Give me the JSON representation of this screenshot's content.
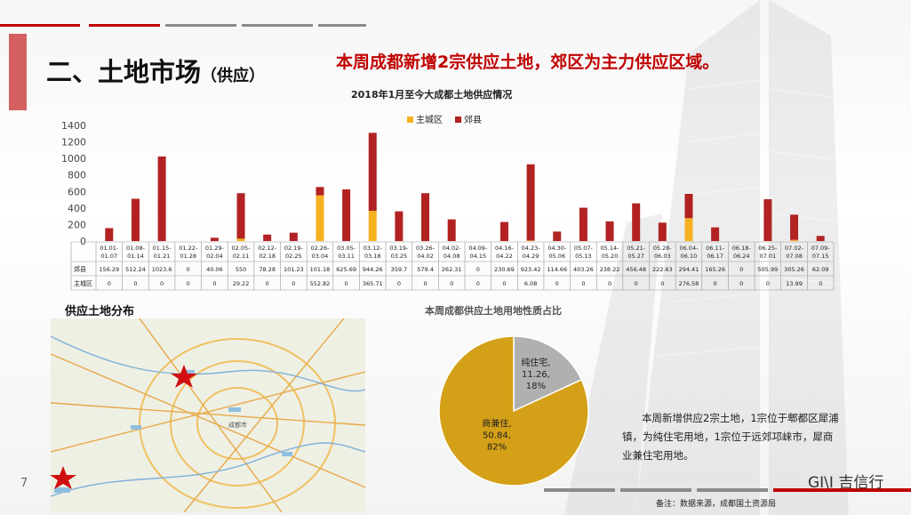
{
  "slide": {
    "title": "二、土地市场",
    "title_paren": "（供应）",
    "headline": "本周成都新增2宗供应土地，郊区为主力供应区域。",
    "page_number": "7",
    "logo_text": "GI\\I 吉信行",
    "note": "备注：数据来源，成都国土资源局"
  },
  "bar_chart": {
    "title": "2018年1月至今大成都土地供应情况",
    "legend": [
      "主城区",
      "郊县"
    ],
    "table_row_labels": [
      "郊县",
      "主城区"
    ]
  },
  "map_section": {
    "label": "供应土地分布",
    "city_label": "成都市"
  },
  "pie": {
    "title": "本周成都供应土地用地性质占比",
    "slices": [
      {
        "label": "纯住宅,",
        "value": "11.26,",
        "pct": "18%"
      },
      {
        "label": "商兼住,",
        "value": "50.84,",
        "pct": "82%"
      }
    ]
  },
  "paragraph": "本周新增供应2宗土地，1宗位于郫都区犀浦镇，为纯住宅用地，1宗位于远郊邛崃市，犀商业兼住宅用地。",
  "colors": {
    "accent_red": "#c00000",
    "bar_suburb": "#b22222",
    "bar_main": "#f5b120",
    "pie_main": "#d4a017",
    "pie_minor": "#b0b0b0"
  },
  "chart_data": [
    {
      "type": "bar",
      "stacked": true,
      "title": "2018年1月至今大成都土地供应情况",
      "categories": [
        "01.01-01.07",
        "01.08-01.14",
        "01.15-01.21",
        "01.22-01.28",
        "01.29-02.04",
        "02.05-02.11",
        "02.12-02.18",
        "02.19-02.25",
        "02.26-03.04",
        "03.05-03.11",
        "03.12-03.18",
        "03.19-03.25",
        "03.26-04.02",
        "04.02-04.08",
        "04.09-04.15",
        "04.16-04.22",
        "04.23-04.29",
        "04.30-05.06",
        "05.07-05.13",
        "05.14-05.20",
        "05.21-05.27",
        "05.28-06.03",
        "06.04-06.10",
        "06.11-06.17",
        "06.18-06.24",
        "06.25-07.01",
        "07.02-07.08",
        "07.09-07.15"
      ],
      "series": [
        {
          "name": "郊县",
          "color": "#b22222",
          "values": [
            156.29,
            512.24,
            1023.6,
            0,
            40.06,
            550,
            78.28,
            101.23,
            101.18,
            625.69,
            944.26,
            359.7,
            579.4,
            262.31,
            0,
            230.69,
            923.42,
            114.66,
            403.26,
            238.22,
            456.48,
            222.63,
            294.41,
            165.26,
            0,
            505.99,
            305.26,
            62.09
          ]
        },
        {
          "name": "主城区",
          "color": "#f5b120",
          "values": [
            0,
            0,
            0,
            0,
            0,
            29.22,
            0,
            0,
            552.82,
            0,
            365.71,
            0,
            0,
            0,
            0,
            0,
            6.08,
            0,
            0,
            0,
            0,
            0,
            276.58,
            0,
            0,
            0,
            13.99,
            0
          ]
        }
      ],
      "yticks": [
        "0",
        "200",
        "400",
        "600",
        "800",
        "1000",
        "1200",
        "1400"
      ],
      "ylim": [
        0,
        1400
      ]
    },
    {
      "type": "pie",
      "title": "本周成都供应土地用地性质占比",
      "slices": [
        {
          "name": "纯住宅",
          "value": 11.26,
          "percent": 18,
          "color": "#b0b0b0"
        },
        {
          "name": "商兼住",
          "value": 50.84,
          "percent": 82,
          "color": "#d4a017"
        }
      ]
    }
  ]
}
